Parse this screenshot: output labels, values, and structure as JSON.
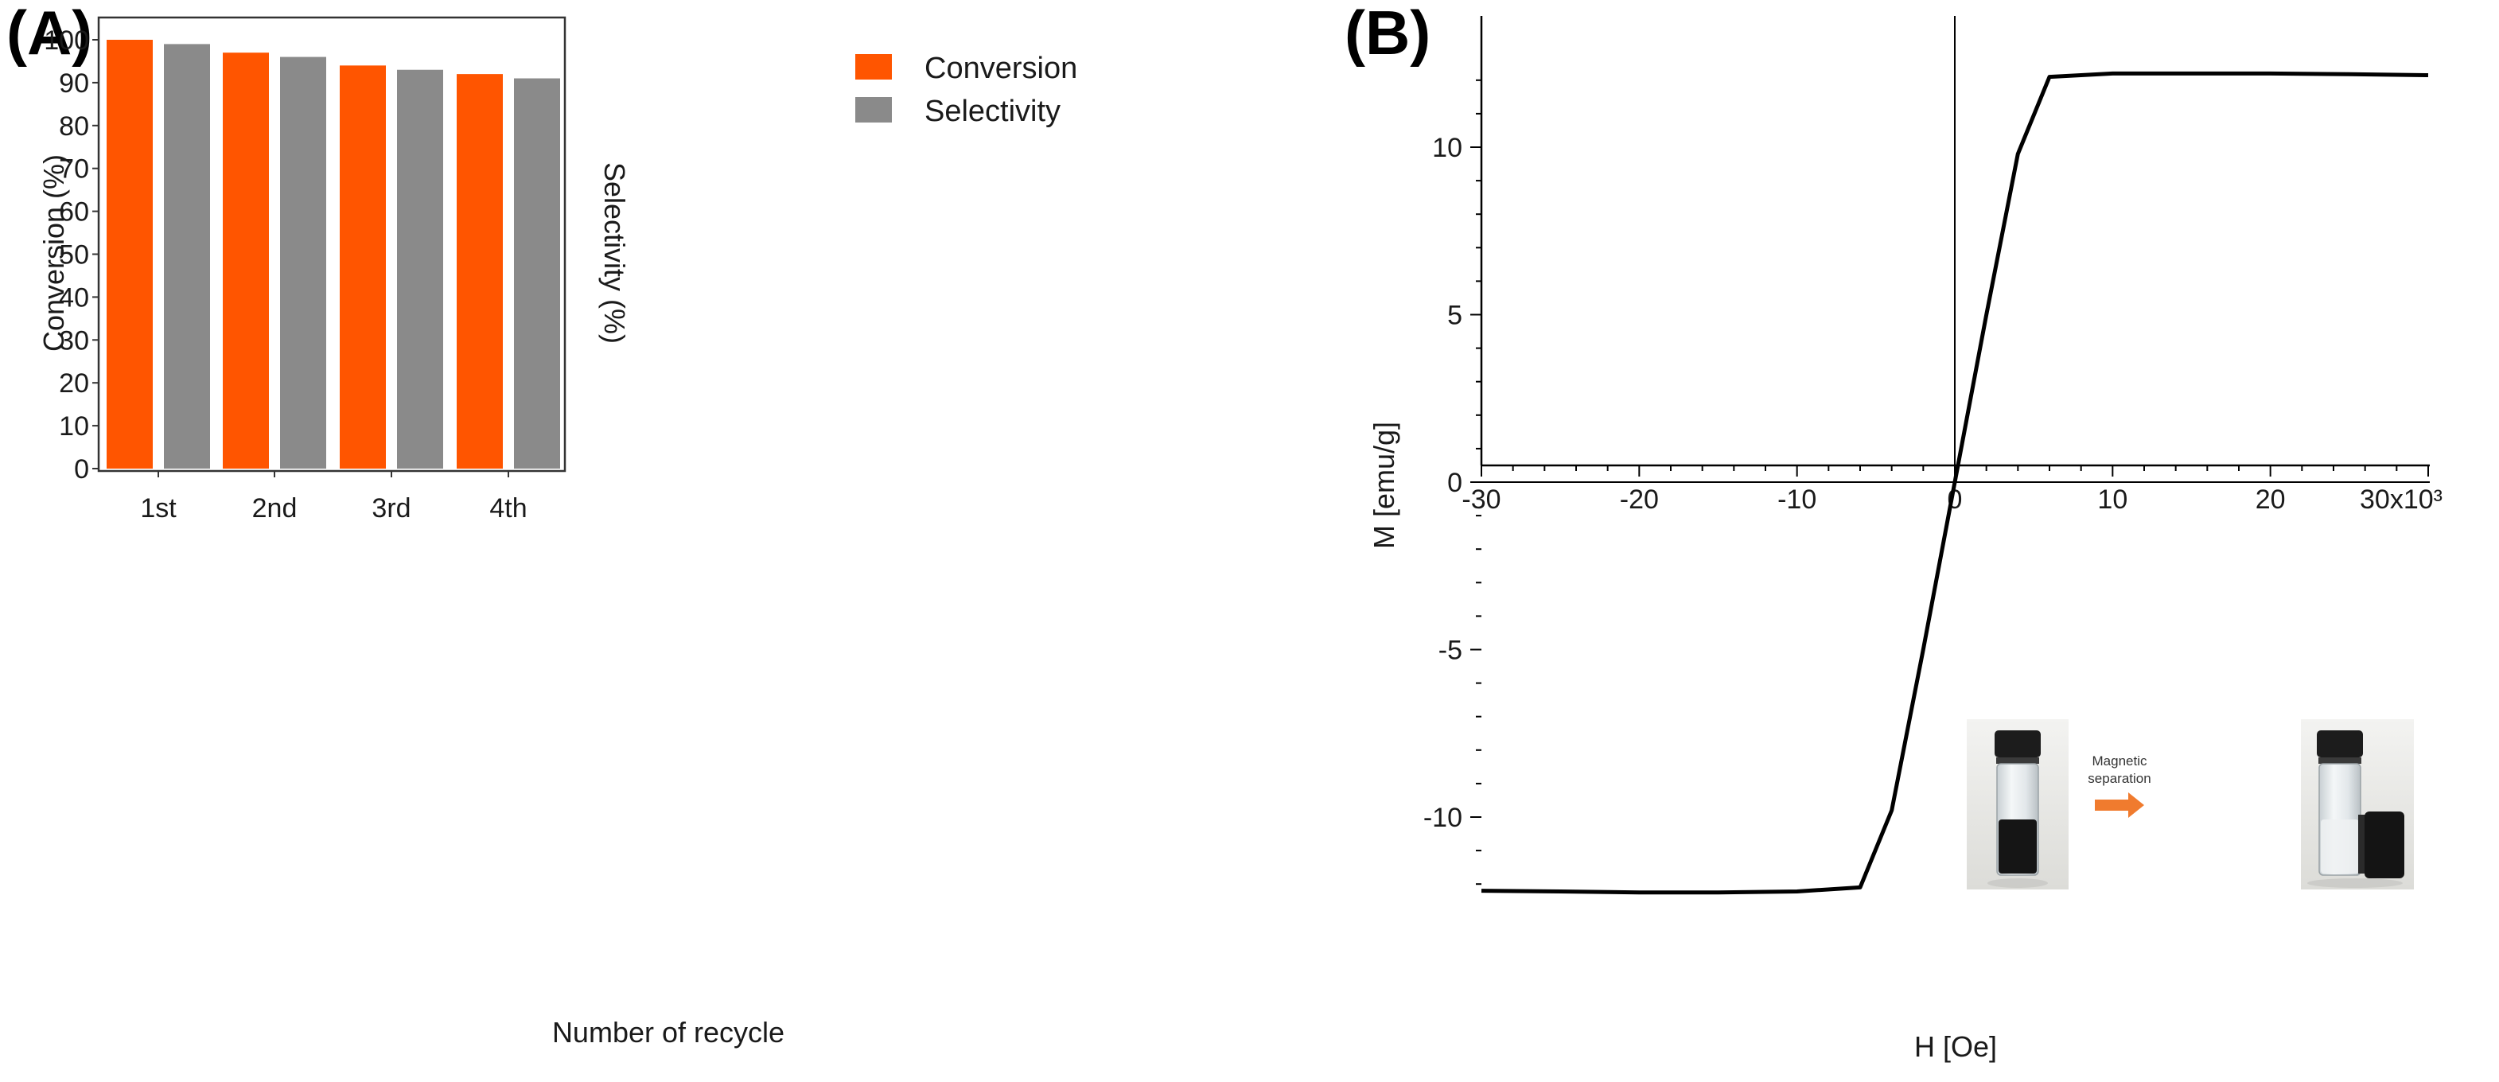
{
  "chart_data": [
    {
      "type": "bar",
      "panel_label": "(A)",
      "categories": [
        "1st",
        "2nd",
        "3rd",
        "4th"
      ],
      "series": [
        {
          "name": "Conversion",
          "color": "#ff5500",
          "values": [
            100,
            97,
            94,
            92
          ]
        },
        {
          "name": "Selectivity",
          "color": "#8a8a8a",
          "values": [
            99,
            96,
            93,
            91
          ]
        }
      ],
      "xlabel": "Number of recycle",
      "ylabel": "Conversion (%)",
      "ylabel_right": "Selectivity (%)",
      "ylim": [
        0,
        105
      ],
      "yticks": [
        0,
        10,
        20,
        30,
        40,
        50,
        60,
        70,
        80,
        90,
        100
      ],
      "legend": "top-right",
      "grid": false
    },
    {
      "type": "line",
      "panel_label": "(B)",
      "series": [
        {
          "name": "M-H loop",
          "color": "#000000",
          "x": [
            -30000,
            -25000,
            -20000,
            -15000,
            -10000,
            -6000,
            -4000,
            -2000,
            0,
            2000,
            4000,
            6000,
            10000,
            15000,
            20000,
            25000,
            30000
          ],
          "y": [
            -12.2,
            -12.22,
            -12.25,
            -12.25,
            -12.22,
            -12.1,
            -9.8,
            -5,
            0,
            5,
            9.8,
            12.1,
            12.2,
            12.2,
            12.2,
            12.18,
            12.15
          ]
        }
      ],
      "xlabel": "H [Oe]",
      "ylabel": "M [emu/g]",
      "xlim": [
        -30000,
        30000
      ],
      "ylim": [
        -13,
        13.3
      ],
      "xticks": [
        -30000,
        -20000,
        -10000,
        0,
        10000,
        20000,
        30000
      ],
      "xtick_labels": [
        "-30",
        "-20",
        "-10",
        "0",
        "10",
        "20",
        "30x10³"
      ],
      "yticks": [
        -10,
        -5,
        0,
        5,
        10
      ],
      "ytick_labels": [
        "-10",
        "-5",
        "0",
        "5",
        "10"
      ],
      "grid": false,
      "inset_caption": [
        "Magnetic",
        "separation"
      ]
    }
  ]
}
